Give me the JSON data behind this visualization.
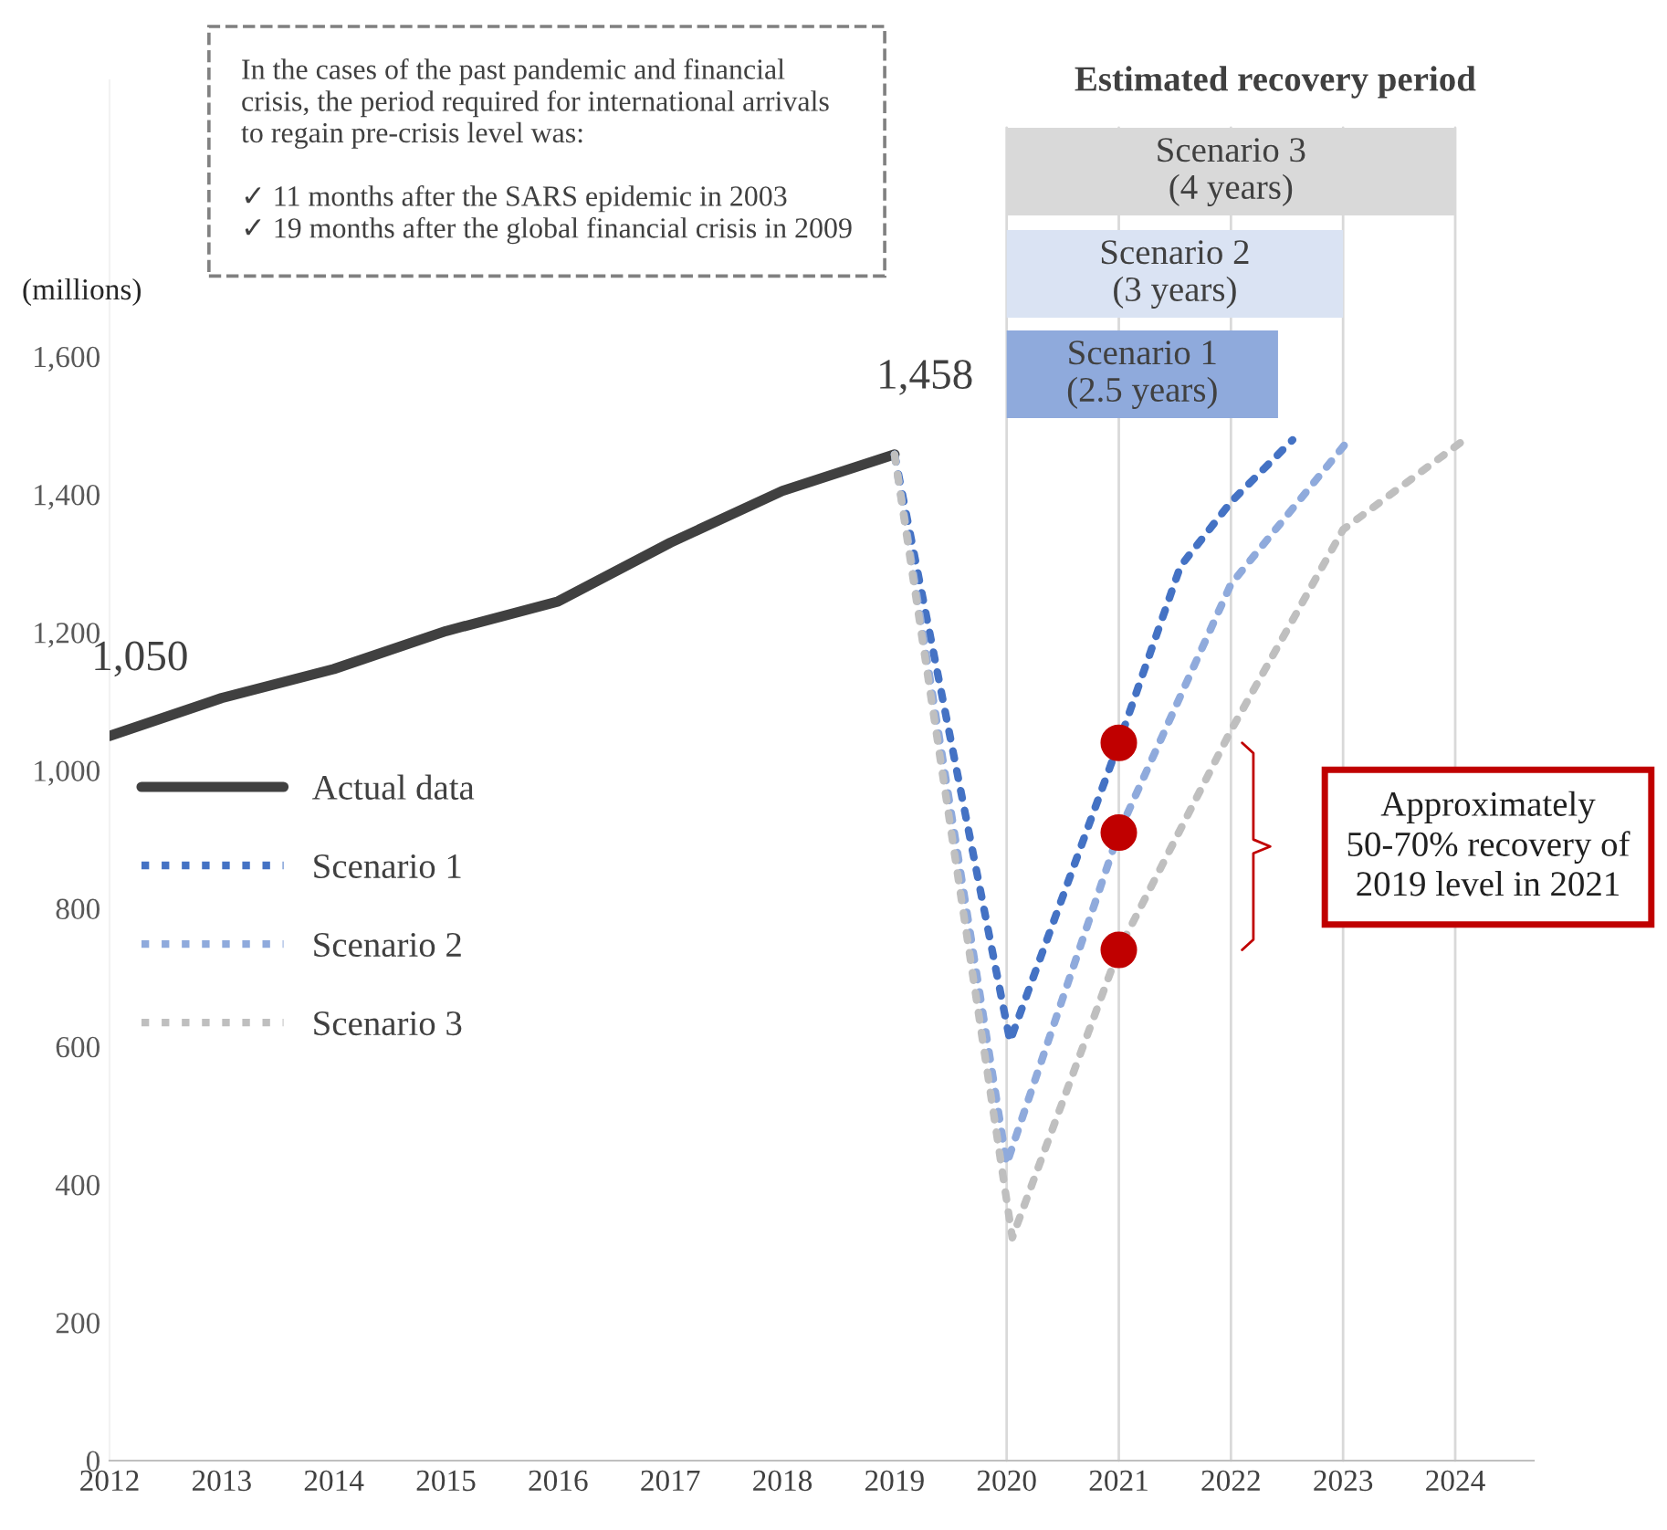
{
  "chart_data": {
    "type": "line",
    "ylabel": "(millions)",
    "xlim": [
      2012,
      2024.7
    ],
    "ylim": [
      0,
      2000
    ],
    "xticks": [
      2012,
      2013,
      2014,
      2015,
      2016,
      2017,
      2018,
      2019,
      2020,
      2021,
      2022,
      2023,
      2024
    ],
    "yticks": [
      {
        "value": 0,
        "label": "0"
      },
      {
        "value": 200,
        "label": "200"
      },
      {
        "value": 400,
        "label": "400"
      },
      {
        "value": 600,
        "label": "600"
      },
      {
        "value": 800,
        "label": "800"
      },
      {
        "value": 1000,
        "label": "1,000"
      },
      {
        "value": 1200,
        "label": "1,200"
      },
      {
        "value": 1400,
        "label": "1,400"
      },
      {
        "value": 1600,
        "label": "1,600"
      }
    ],
    "series": [
      {
        "name": "Actual data",
        "color": "#404040",
        "line_style": "solid",
        "x": [
          2012,
          2013,
          2014,
          2015,
          2016,
          2017,
          2018,
          2019
        ],
        "values": [
          1050,
          1105,
          1147,
          1202,
          1245,
          1330,
          1405,
          1458
        ]
      },
      {
        "name": "Scenario 1",
        "color": "#4472c4",
        "line_style": "dotted",
        "x": [
          2019,
          2020.03,
          2021,
          2021.55,
          2022,
          2022.55
        ],
        "values": [
          1458,
          608,
          1040,
          1296,
          1389,
          1479
        ]
      },
      {
        "name": "Scenario 2",
        "color": "#8faadc",
        "line_style": "dotted",
        "x": [
          2019,
          2020,
          2021,
          2022,
          2023.05
        ],
        "values": [
          1458,
          430,
          910,
          1270,
          1479
        ]
      },
      {
        "name": "Scenario 3",
        "color": "#bfbfbf",
        "line_style": "dotted",
        "x": [
          2019,
          2020.05,
          2021,
          2022,
          2023,
          2024.08
        ],
        "values": [
          1458,
          323,
          740,
          1058,
          1349,
          1479
        ]
      },
      {
        "type": "scatter",
        "color": "#c00000",
        "marker": "circle",
        "x": [
          2021,
          2021,
          2021
        ],
        "values": [
          1040,
          910,
          740
        ]
      }
    ],
    "ref_lines": [
      {
        "axis": "x",
        "value": 2020,
        "color": "#d9d9d9"
      },
      {
        "axis": "x",
        "value": 2021,
        "color": "#d9d9d9"
      },
      {
        "axis": "x",
        "value": 2022,
        "color": "#d9d9d9"
      },
      {
        "axis": "x",
        "value": 2023,
        "color": "#d9d9d9"
      },
      {
        "axis": "x",
        "value": 2024,
        "color": "#d9d9d9"
      }
    ],
    "bands": [
      {
        "axis": "x",
        "from": 2020,
        "to": 2022.42,
        "label": "Scenario 1\n(2.5 years)",
        "color": "#8faadc"
      },
      {
        "axis": "x",
        "from": 2020,
        "to": 2023,
        "label": "Scenario 2\n(3 years)",
        "color": "#dae3f3"
      },
      {
        "axis": "x",
        "from": 2020,
        "to": 2024,
        "label": "Scenario 3\n(4 years)",
        "color": "#d9d9d9"
      }
    ],
    "annotations": [
      {
        "text": "1,050",
        "x": 2012,
        "y": 1050
      },
      {
        "text": "1,458",
        "x": 2019,
        "y": 1458
      },
      "Estimated recovery period",
      "In the cases of the past pandemic and financial\ncrisis, the period required for international arrivals\nto regain pre-crisis level was:\n\n✓ 11 months after the SARS epidemic in 2003\n✓ 19 months after the global financial crisis in 2009",
      "Approximately\n50-70% recovery of\n2019 level in 2021"
    ],
    "legend": "center left"
  }
}
